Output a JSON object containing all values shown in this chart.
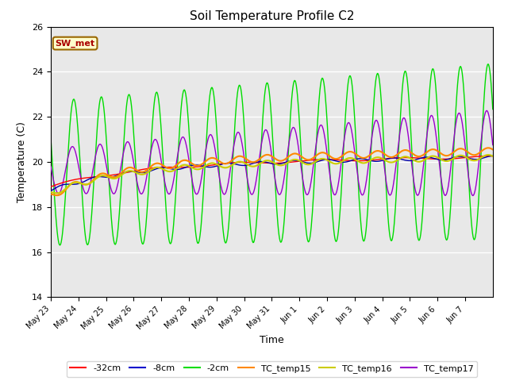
{
  "title": "Soil Temperature Profile C2",
  "xlabel": "Time",
  "ylabel": "Temperature (C)",
  "ylim": [
    14,
    26
  ],
  "annotation": "SW_met",
  "bg_color": "#e8e8e8",
  "legend_entries": [
    "-32cm",
    "-8cm",
    "-2cm",
    "TC_temp15",
    "TC_temp16",
    "TC_temp17"
  ],
  "legend_colors": [
    "#ff0000",
    "#0000cc",
    "#00dd00",
    "#ff8800",
    "#cccc00",
    "#9900cc"
  ],
  "line_colors": {
    "m32cm": "#ff0000",
    "m8cm": "#0000aa",
    "m2cm": "#00dd00",
    "tc15": "#ff8800",
    "tc16": "#cccc00",
    "tc17": "#9900cc"
  },
  "tick_labels": [
    "May 23",
    "May 24",
    "May 25",
    "May 26",
    "May 27",
    "May 28",
    "May 29",
    "May 30",
    "May 31",
    "Jun 1",
    "Jun 2",
    "Jun 3",
    "Jun 4",
    "Jun 5",
    "Jun 6",
    "Jun 7"
  ],
  "yticks": [
    14,
    16,
    18,
    20,
    22,
    24,
    26
  ]
}
